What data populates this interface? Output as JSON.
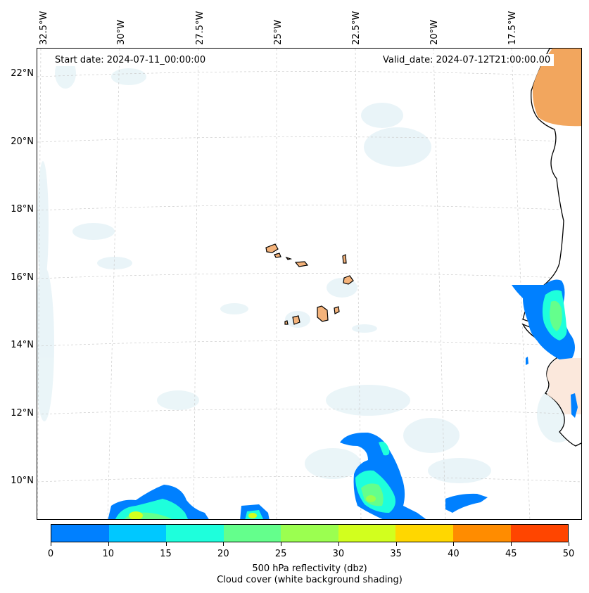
{
  "map": {
    "start_date_text": "Start date: 2024-07-11_00:00:00",
    "valid_date_text": "Valid_date: 2024-07-12T21:00:00.00",
    "lon_labels": [
      "32.5°W",
      "30°W",
      "27.5°W",
      "25°W",
      "22.5°W",
      "20°W",
      "17.5°W"
    ],
    "lat_labels": [
      "22°N",
      "20°N",
      "18°N",
      "16°N",
      "14°N",
      "12°N",
      "10°N"
    ]
  },
  "colorbar": {
    "ticks": [
      "0",
      "10",
      "15",
      "20",
      "25",
      "30",
      "35",
      "40",
      "45",
      "50"
    ],
    "colors": [
      "#0080ff",
      "#00c8ff",
      "#1effdc",
      "#64ff8c",
      "#9bff50",
      "#d2ff1e",
      "#ffd700",
      "#ff8c00",
      "#ff4500"
    ],
    "label_line1": "500 hPa reflectivity (dbz)",
    "label_line2": "Cloud cover (white background shading)"
  }
}
